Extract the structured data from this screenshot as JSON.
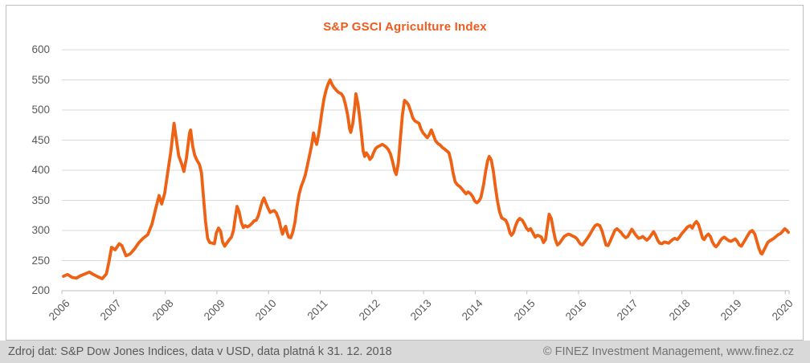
{
  "title": "S&P GSCI Agriculture Index",
  "footer": {
    "source": "Zdroj dat: S&P Dow Jones Indices, data v USD, data platná k 31. 12. 2018",
    "copyright": "© FINEZ Investment Management, www.finez.cz"
  },
  "colors": {
    "line": "#ED6214",
    "title": "#ED5B1E",
    "gridline": "#D9D9D9",
    "axis_line": "#BFBFBF",
    "axis_label": "#595959",
    "frame_border": "#BFBFBF",
    "footer_bg": "#D9D9D9",
    "footer_text": "#595959",
    "footer_text_right": "#737373",
    "background": "#FFFFFF"
  },
  "chart_data": {
    "type": "line",
    "title": "S&P GSCI Agriculture Index",
    "series_name": "S&P GSCI Agriculture Index",
    "xlabel": "",
    "ylabel": "",
    "grid": true,
    "legend": false,
    "ylim": [
      200,
      600
    ],
    "y_ticks": [
      600,
      550,
      500,
      450,
      400,
      350,
      300,
      250,
      200
    ],
    "x_ticks": [
      2006,
      2007,
      2008,
      2009,
      2010,
      2011,
      2012,
      2013,
      2014,
      2015,
      2016,
      2017,
      2018,
      2019,
      2020
    ],
    "x_range": [
      2006,
      2020.07
    ],
    "points": [
      [
        2006.0,
        224
      ],
      [
        2006.08,
        227
      ],
      [
        2006.17,
        222
      ],
      [
        2006.25,
        221
      ],
      [
        2006.33,
        225
      ],
      [
        2006.42,
        228
      ],
      [
        2006.5,
        231
      ],
      [
        2006.58,
        227
      ],
      [
        2006.67,
        223
      ],
      [
        2006.75,
        220
      ],
      [
        2006.83,
        228
      ],
      [
        2006.88,
        248
      ],
      [
        2006.93,
        272
      ],
      [
        2007.0,
        268
      ],
      [
        2007.08,
        278
      ],
      [
        2007.13,
        275
      ],
      [
        2007.21,
        258
      ],
      [
        2007.29,
        261
      ],
      [
        2007.38,
        270
      ],
      [
        2007.46,
        280
      ],
      [
        2007.54,
        287
      ],
      [
        2007.63,
        293
      ],
      [
        2007.71,
        310
      ],
      [
        2007.79,
        338
      ],
      [
        2007.85,
        358
      ],
      [
        2007.9,
        344
      ],
      [
        2007.96,
        362
      ],
      [
        2008.02,
        398
      ],
      [
        2008.08,
        432
      ],
      [
        2008.14,
        478
      ],
      [
        2008.19,
        448
      ],
      [
        2008.23,
        424
      ],
      [
        2008.29,
        410
      ],
      [
        2008.33,
        398
      ],
      [
        2008.38,
        420
      ],
      [
        2008.44,
        462
      ],
      [
        2008.46,
        467
      ],
      [
        2008.5,
        440
      ],
      [
        2008.54,
        425
      ],
      [
        2008.58,
        417
      ],
      [
        2008.63,
        410
      ],
      [
        2008.67,
        396
      ],
      [
        2008.71,
        354
      ],
      [
        2008.75,
        315
      ],
      [
        2008.79,
        287
      ],
      [
        2008.83,
        280
      ],
      [
        2008.88,
        279
      ],
      [
        2008.92,
        278
      ],
      [
        2008.96,
        296
      ],
      [
        2009.0,
        304
      ],
      [
        2009.04,
        299
      ],
      [
        2009.08,
        281
      ],
      [
        2009.12,
        274
      ],
      [
        2009.17,
        280
      ],
      [
        2009.21,
        285
      ],
      [
        2009.25,
        289
      ],
      [
        2009.29,
        300
      ],
      [
        2009.33,
        324
      ],
      [
        2009.36,
        340
      ],
      [
        2009.4,
        331
      ],
      [
        2009.44,
        314
      ],
      [
        2009.48,
        305
      ],
      [
        2009.52,
        308
      ],
      [
        2009.56,
        306
      ],
      [
        2009.6,
        308
      ],
      [
        2009.65,
        312
      ],
      [
        2009.69,
        316
      ],
      [
        2009.73,
        317
      ],
      [
        2009.77,
        324
      ],
      [
        2009.81,
        337
      ],
      [
        2009.85,
        349
      ],
      [
        2009.88,
        354
      ],
      [
        2009.92,
        345
      ],
      [
        2009.96,
        337
      ],
      [
        2010.0,
        330
      ],
      [
        2010.04,
        332
      ],
      [
        2010.08,
        333
      ],
      [
        2010.12,
        329
      ],
      [
        2010.17,
        318
      ],
      [
        2010.21,
        303
      ],
      [
        2010.24,
        294
      ],
      [
        2010.27,
        302
      ],
      [
        2010.3,
        307
      ],
      [
        2010.33,
        296
      ],
      [
        2010.36,
        289
      ],
      [
        2010.4,
        288
      ],
      [
        2010.44,
        298
      ],
      [
        2010.48,
        314
      ],
      [
        2010.52,
        340
      ],
      [
        2010.56,
        360
      ],
      [
        2010.6,
        373
      ],
      [
        2010.64,
        382
      ],
      [
        2010.68,
        392
      ],
      [
        2010.72,
        408
      ],
      [
        2010.76,
        424
      ],
      [
        2010.8,
        440
      ],
      [
        2010.84,
        462
      ],
      [
        2010.87,
        450
      ],
      [
        2010.9,
        443
      ],
      [
        2010.94,
        460
      ],
      [
        2010.97,
        478
      ],
      [
        2011.0,
        496
      ],
      [
        2011.04,
        518
      ],
      [
        2011.08,
        532
      ],
      [
        2011.12,
        543
      ],
      [
        2011.16,
        550
      ],
      [
        2011.2,
        542
      ],
      [
        2011.24,
        537
      ],
      [
        2011.29,
        532
      ],
      [
        2011.33,
        529
      ],
      [
        2011.38,
        527
      ],
      [
        2011.42,
        521
      ],
      [
        2011.46,
        508
      ],
      [
        2011.5,
        492
      ],
      [
        2011.54,
        468
      ],
      [
        2011.56,
        463
      ],
      [
        2011.6,
        478
      ],
      [
        2011.64,
        508
      ],
      [
        2011.66,
        527
      ],
      [
        2011.7,
        510
      ],
      [
        2011.73,
        490
      ],
      [
        2011.77,
        458
      ],
      [
        2011.8,
        432
      ],
      [
        2011.83,
        423
      ],
      [
        2011.86,
        429
      ],
      [
        2011.9,
        424
      ],
      [
        2011.93,
        418
      ],
      [
        2011.97,
        422
      ],
      [
        2012.0,
        429
      ],
      [
        2012.04,
        436
      ],
      [
        2012.08,
        439
      ],
      [
        2012.13,
        441
      ],
      [
        2012.17,
        443
      ],
      [
        2012.21,
        441
      ],
      [
        2012.25,
        438
      ],
      [
        2012.29,
        434
      ],
      [
        2012.33,
        427
      ],
      [
        2012.37,
        414
      ],
      [
        2012.41,
        399
      ],
      [
        2012.44,
        393
      ],
      [
        2012.48,
        412
      ],
      [
        2012.52,
        452
      ],
      [
        2012.56,
        492
      ],
      [
        2012.6,
        516
      ],
      [
        2012.64,
        513
      ],
      [
        2012.68,
        508
      ],
      [
        2012.72,
        498
      ],
      [
        2012.76,
        487
      ],
      [
        2012.8,
        482
      ],
      [
        2012.84,
        480
      ],
      [
        2012.88,
        478
      ],
      [
        2012.92,
        468
      ],
      [
        2012.96,
        462
      ],
      [
        2013.0,
        458
      ],
      [
        2013.04,
        454
      ],
      [
        2013.08,
        459
      ],
      [
        2013.12,
        467
      ],
      [
        2013.16,
        458
      ],
      [
        2013.2,
        449
      ],
      [
        2013.25,
        444
      ],
      [
        2013.29,
        442
      ],
      [
        2013.33,
        438
      ],
      [
        2013.38,
        435
      ],
      [
        2013.42,
        432
      ],
      [
        2013.46,
        429
      ],
      [
        2013.5,
        415
      ],
      [
        2013.54,
        396
      ],
      [
        2013.58,
        381
      ],
      [
        2013.62,
        376
      ],
      [
        2013.67,
        373
      ],
      [
        2013.71,
        369
      ],
      [
        2013.75,
        365
      ],
      [
        2013.79,
        361
      ],
      [
        2013.83,
        364
      ],
      [
        2013.88,
        361
      ],
      [
        2013.92,
        356
      ],
      [
        2013.96,
        349
      ],
      [
        2014.0,
        346
      ],
      [
        2014.04,
        349
      ],
      [
        2014.08,
        355
      ],
      [
        2014.13,
        376
      ],
      [
        2014.17,
        398
      ],
      [
        2014.21,
        416
      ],
      [
        2014.24,
        423
      ],
      [
        2014.28,
        417
      ],
      [
        2014.32,
        398
      ],
      [
        2014.36,
        372
      ],
      [
        2014.4,
        349
      ],
      [
        2014.44,
        331
      ],
      [
        2014.48,
        321
      ],
      [
        2014.52,
        319
      ],
      [
        2014.56,
        317
      ],
      [
        2014.6,
        309
      ],
      [
        2014.64,
        296
      ],
      [
        2014.67,
        292
      ],
      [
        2014.71,
        297
      ],
      [
        2014.75,
        308
      ],
      [
        2014.79,
        316
      ],
      [
        2014.83,
        320
      ],
      [
        2014.88,
        317
      ],
      [
        2014.92,
        311
      ],
      [
        2014.96,
        304
      ],
      [
        2015.0,
        300
      ],
      [
        2015.04,
        303
      ],
      [
        2015.08,
        297
      ],
      [
        2015.13,
        289
      ],
      [
        2015.17,
        292
      ],
      [
        2015.21,
        291
      ],
      [
        2015.25,
        289
      ],
      [
        2015.29,
        280
      ],
      [
        2015.33,
        285
      ],
      [
        2015.37,
        310
      ],
      [
        2015.4,
        327
      ],
      [
        2015.44,
        320
      ],
      [
        2015.48,
        301
      ],
      [
        2015.52,
        285
      ],
      [
        2015.56,
        276
      ],
      [
        2015.6,
        279
      ],
      [
        2015.65,
        285
      ],
      [
        2015.69,
        290
      ],
      [
        2015.73,
        292
      ],
      [
        2015.77,
        294
      ],
      [
        2015.81,
        293
      ],
      [
        2015.85,
        291
      ],
      [
        2015.9,
        289
      ],
      [
        2015.94,
        286
      ],
      [
        2016.0,
        278
      ],
      [
        2016.04,
        276
      ],
      [
        2016.08,
        280
      ],
      [
        2016.13,
        286
      ],
      [
        2016.17,
        291
      ],
      [
        2016.21,
        297
      ],
      [
        2016.25,
        303
      ],
      [
        2016.29,
        308
      ],
      [
        2016.33,
        310
      ],
      [
        2016.38,
        308
      ],
      [
        2016.42,
        300
      ],
      [
        2016.46,
        288
      ],
      [
        2016.5,
        276
      ],
      [
        2016.54,
        275
      ],
      [
        2016.58,
        282
      ],
      [
        2016.63,
        292
      ],
      [
        2016.67,
        300
      ],
      [
        2016.71,
        303
      ],
      [
        2016.75,
        300
      ],
      [
        2016.79,
        297
      ],
      [
        2016.83,
        292
      ],
      [
        2016.88,
        288
      ],
      [
        2016.92,
        290
      ],
      [
        2016.96,
        296
      ],
      [
        2017.0,
        302
      ],
      [
        2017.04,
        297
      ],
      [
        2017.08,
        292
      ],
      [
        2017.13,
        287
      ],
      [
        2017.17,
        288
      ],
      [
        2017.21,
        290
      ],
      [
        2017.25,
        287
      ],
      [
        2017.29,
        284
      ],
      [
        2017.33,
        287
      ],
      [
        2017.38,
        293
      ],
      [
        2017.42,
        298
      ],
      [
        2017.46,
        292
      ],
      [
        2017.5,
        284
      ],
      [
        2017.54,
        279
      ],
      [
        2017.58,
        278
      ],
      [
        2017.63,
        281
      ],
      [
        2017.67,
        280
      ],
      [
        2017.71,
        279
      ],
      [
        2017.75,
        282
      ],
      [
        2017.79,
        285
      ],
      [
        2017.83,
        287
      ],
      [
        2017.88,
        285
      ],
      [
        2017.92,
        289
      ],
      [
        2017.96,
        294
      ],
      [
        2018.0,
        298
      ],
      [
        2018.04,
        302
      ],
      [
        2018.08,
        306
      ],
      [
        2018.13,
        308
      ],
      [
        2018.17,
        304
      ],
      [
        2018.21,
        311
      ],
      [
        2018.25,
        315
      ],
      [
        2018.29,
        310
      ],
      [
        2018.33,
        299
      ],
      [
        2018.37,
        287
      ],
      [
        2018.4,
        285
      ],
      [
        2018.44,
        291
      ],
      [
        2018.48,
        294
      ],
      [
        2018.52,
        290
      ],
      [
        2018.56,
        281
      ],
      [
        2018.6,
        275
      ],
      [
        2018.63,
        273
      ],
      [
        2018.67,
        277
      ],
      [
        2018.71,
        283
      ],
      [
        2018.75,
        287
      ],
      [
        2018.79,
        289
      ],
      [
        2018.83,
        286
      ],
      [
        2018.88,
        283
      ],
      [
        2018.92,
        282
      ],
      [
        2018.96,
        284
      ],
      [
        2019.0,
        286
      ],
      [
        2019.04,
        282
      ],
      [
        2019.08,
        276
      ],
      [
        2019.12,
        274
      ],
      [
        2019.17,
        281
      ],
      [
        2019.21,
        287
      ],
      [
        2019.25,
        293
      ],
      [
        2019.29,
        298
      ],
      [
        2019.33,
        300
      ],
      [
        2019.38,
        294
      ],
      [
        2019.42,
        282
      ],
      [
        2019.46,
        270
      ],
      [
        2019.5,
        262
      ],
      [
        2019.52,
        261
      ],
      [
        2019.56,
        268
      ],
      [
        2019.6,
        275
      ],
      [
        2019.63,
        280
      ],
      [
        2019.67,
        283
      ],
      [
        2019.71,
        285
      ],
      [
        2019.75,
        287
      ],
      [
        2019.79,
        290
      ],
      [
        2019.83,
        293
      ],
      [
        2019.88,
        295
      ],
      [
        2019.92,
        299
      ],
      [
        2019.96,
        303
      ],
      [
        2020.0,
        300
      ],
      [
        2020.03,
        297
      ]
    ]
  }
}
